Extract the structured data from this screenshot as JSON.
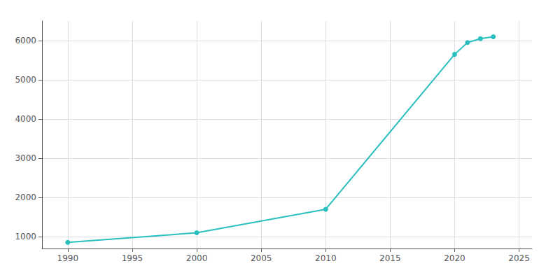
{
  "chart_data": {
    "type": "line",
    "x": [
      1990,
      2000,
      2010,
      2020,
      2021,
      2022,
      2023
    ],
    "values": [
      855,
      1100,
      1700,
      5650,
      5950,
      6050,
      6100
    ],
    "color": "#2bbfbf",
    "marker": "circle",
    "xlim": [
      1988,
      2026
    ],
    "xticks": [
      1990,
      1995,
      2000,
      2005,
      2010,
      2015,
      2020,
      2025
    ],
    "ylim": [
      700,
      6500
    ],
    "yticks": [
      1000,
      2000,
      3000,
      4000,
      5000,
      6000
    ],
    "grid": true
  }
}
